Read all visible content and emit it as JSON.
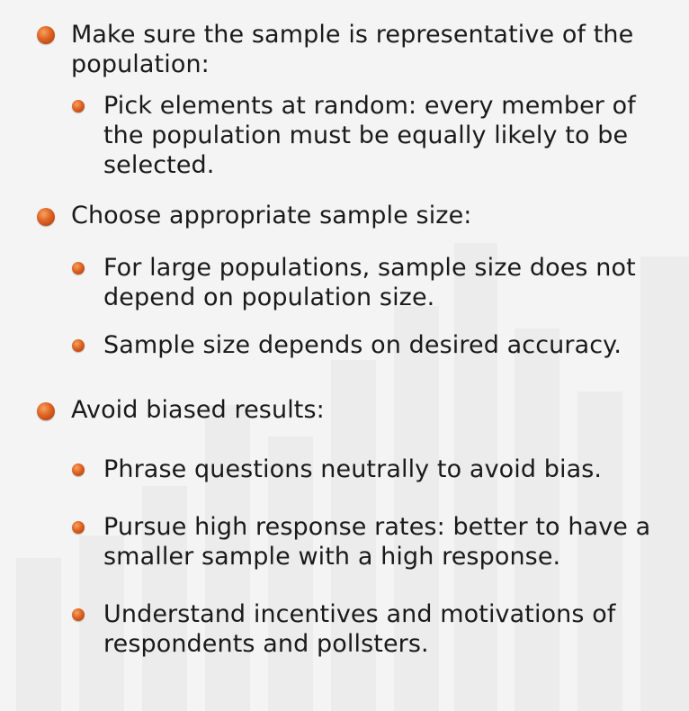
{
  "bullets": [
    {
      "level": 1,
      "text": "Make sure the sample is representative of the population:"
    },
    {
      "level": 2,
      "text": "Pick elements at random: every member of the population must be equally likely to be selected."
    },
    {
      "level": 1,
      "text": "Choose appropriate sample size:"
    },
    {
      "level": 2,
      "text": "For large populations, sample size does not depend on population size."
    },
    {
      "level": 2,
      "text": "Sample size depends on desired accuracy."
    },
    {
      "level": 1,
      "text": "Avoid biased results:"
    },
    {
      "level": 2,
      "text": "Phrase questions neutrally to avoid bias."
    },
    {
      "level": 2,
      "text": "Pursue high response rates: better to have a smaller sample with a high response."
    },
    {
      "level": 2,
      "text": "Understand incentives and motivations of respondents and pollsters."
    }
  ],
  "colors": {
    "background": "#f4f4f4",
    "text": "#1a1a1a",
    "bullet": "#dd6222"
  },
  "icons": {
    "bullet": "orange-orb-bullet-icon"
  }
}
